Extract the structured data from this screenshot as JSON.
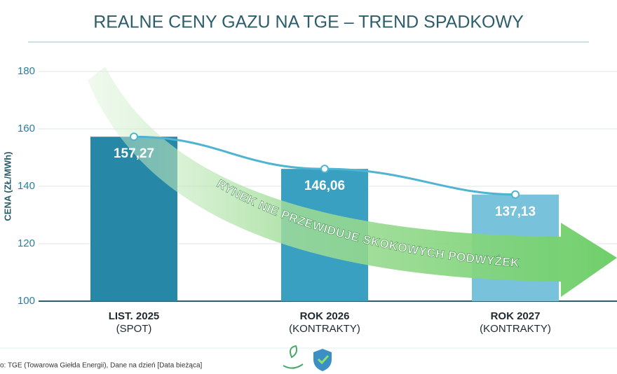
{
  "chart_data": {
    "type": "bar",
    "title": "REALNE CENY GAZU NA TGE – TREND SPADKOWY",
    "y_label": "CENA (ZŁ/MWh)",
    "categories": [
      "LIST. 2025",
      "ROK 2026",
      "ROK 2027"
    ],
    "category_notes": [
      "(SPOT)",
      "(KONTRAKTY)",
      "(KONTRAKTY)"
    ],
    "values": [
      157.27,
      146.06,
      137.13
    ],
    "value_labels": [
      "157,27",
      "146,06",
      "137,13"
    ],
    "colors": [
      "#2688a6",
      "#3aa0c2",
      "#78c2dc"
    ],
    "line_color": "#4fb3d2",
    "ylim": [
      100,
      180
    ],
    "yticks": [
      100,
      120,
      140,
      160,
      180
    ],
    "grid": true,
    "annotation": "RYNEK NIE PRZEWIDUJE SKOKOWYCH PODWYŻEK",
    "source": "o: TGE (Towarowa Giełda Energii), Dane na dzień [Data bieżąca]"
  }
}
